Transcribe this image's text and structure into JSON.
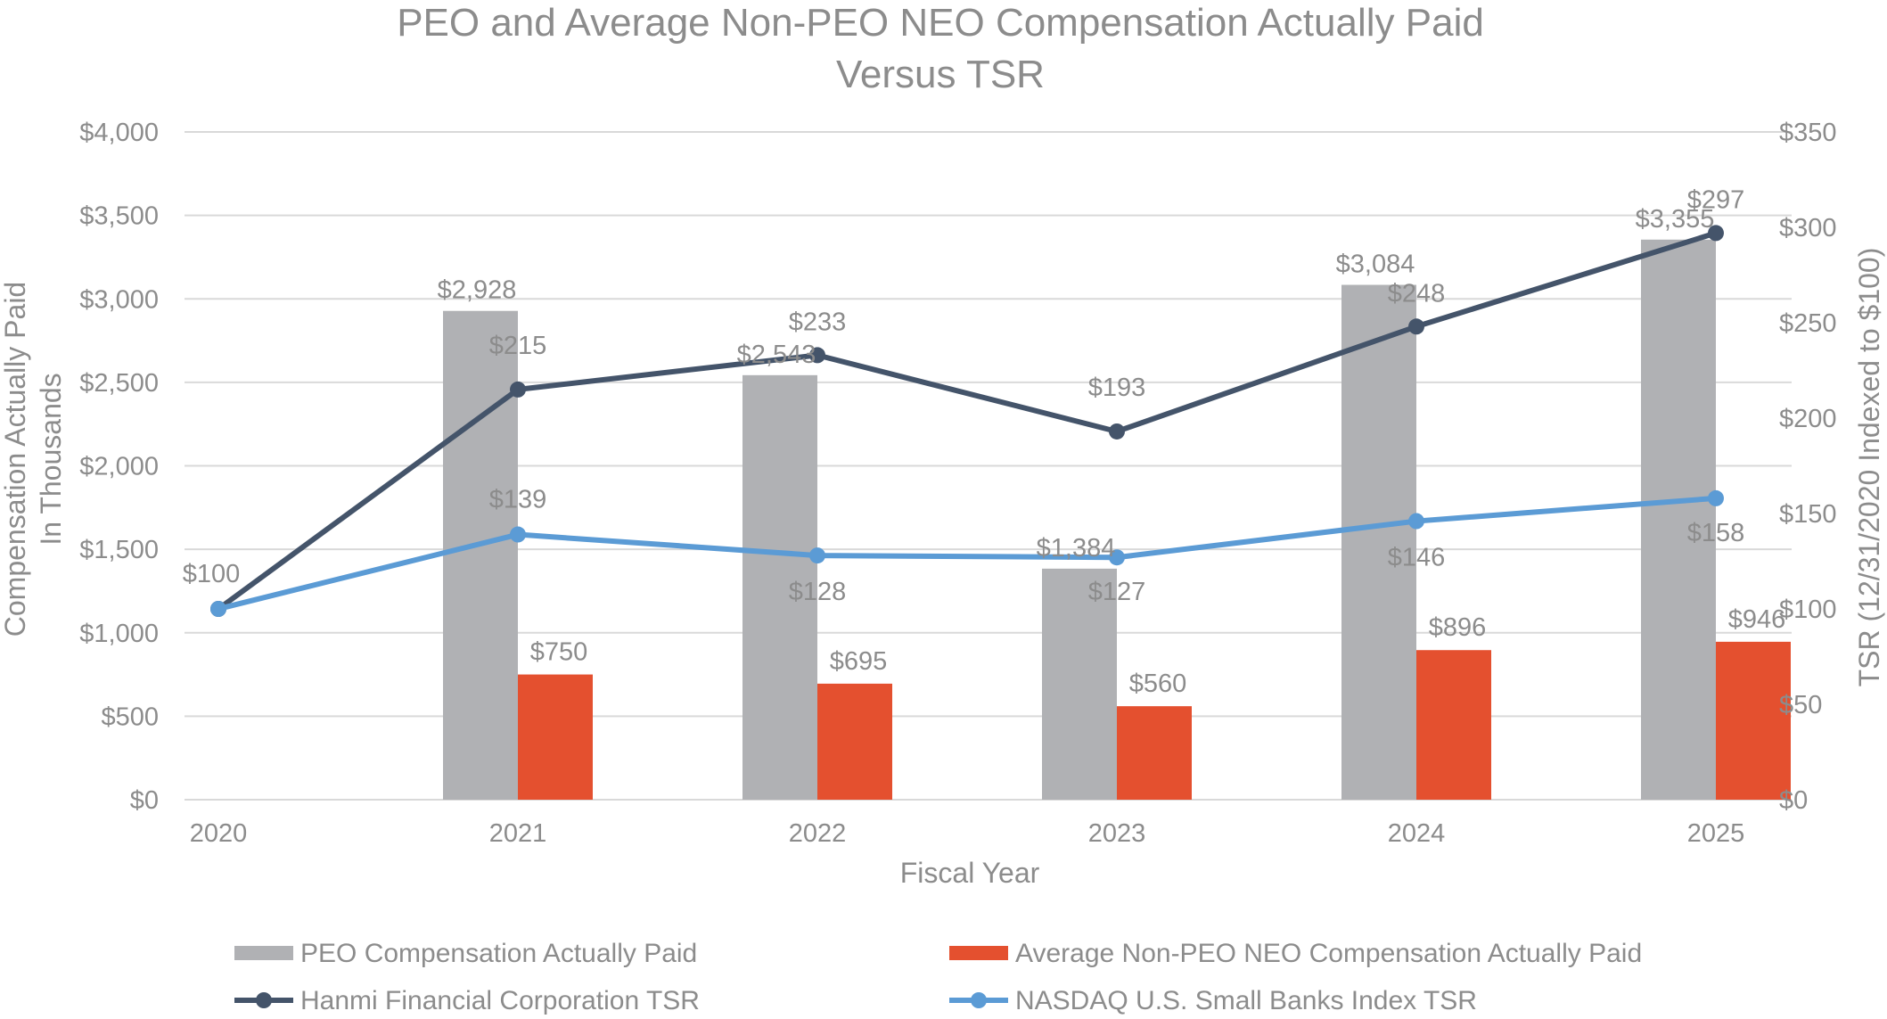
{
  "chart_data": {
    "type": "bar",
    "title_lines": [
      "PEO and Average Non-PEO NEO Compensation Actually Paid",
      "Versus TSR"
    ],
    "xlabel": "Fiscal Year",
    "ylabel_left_lines": [
      "Compensation Actually Paid",
      "In Thousands"
    ],
    "ylabel_right": "TSR (12/31/2020 Indexed to $100)",
    "categories": [
      "2020",
      "2021",
      "2022",
      "2023",
      "2024",
      "2025"
    ],
    "y_left": {
      "min": 0,
      "max": 4000,
      "ticks": [
        0,
        500,
        1000,
        1500,
        2000,
        2500,
        3000,
        3500,
        4000
      ],
      "tick_labels": [
        "$0",
        "$500",
        "$1,000",
        "$1,500",
        "$2,000",
        "$2,500",
        "$3,000",
        "$3,500",
        "$4,000"
      ]
    },
    "y_right": {
      "min": 0,
      "max": 350,
      "ticks": [
        0,
        50,
        100,
        150,
        200,
        250,
        300,
        350
      ],
      "tick_labels": [
        "$0",
        "$50",
        "$100",
        "$150",
        "$200",
        "$250",
        "$300",
        "$350"
      ]
    },
    "grid": true,
    "legend_position": "bottom",
    "bar_series": [
      {
        "name": "PEO Compensation Actually Paid",
        "color": "#b0b1b4",
        "axis": "left",
        "values": [
          null,
          2928,
          2543,
          1384,
          3084,
          3355
        ],
        "labels": [
          "",
          "$2,928",
          "$2,543",
          "$1,384",
          "$3,084",
          "$3,355"
        ]
      },
      {
        "name": "Average Non-PEO NEO Compensation Actually Paid",
        "color": "#e4502f",
        "axis": "right-half",
        "values": [
          null,
          750,
          695,
          560,
          896,
          946
        ],
        "labels": [
          "",
          "$750",
          "$695",
          "$560",
          "$896",
          "$946"
        ]
      }
    ],
    "line_series": [
      {
        "name": "Hanmi Financial Corporation TSR",
        "color": "#44546a",
        "axis": "right",
        "values": [
          100,
          215,
          233,
          193,
          248,
          297
        ],
        "labels": [
          "$100",
          "$215",
          "$233",
          "$193",
          "$248",
          "$297"
        ]
      },
      {
        "name": "NASDAQ U.S. Small Banks Index TSR",
        "color": "#5b9bd5",
        "axis": "right",
        "values": [
          100,
          139,
          128,
          127,
          146,
          158
        ],
        "labels": [
          "",
          "$139",
          "$128",
          "$127",
          "$146",
          "$158"
        ]
      }
    ]
  }
}
